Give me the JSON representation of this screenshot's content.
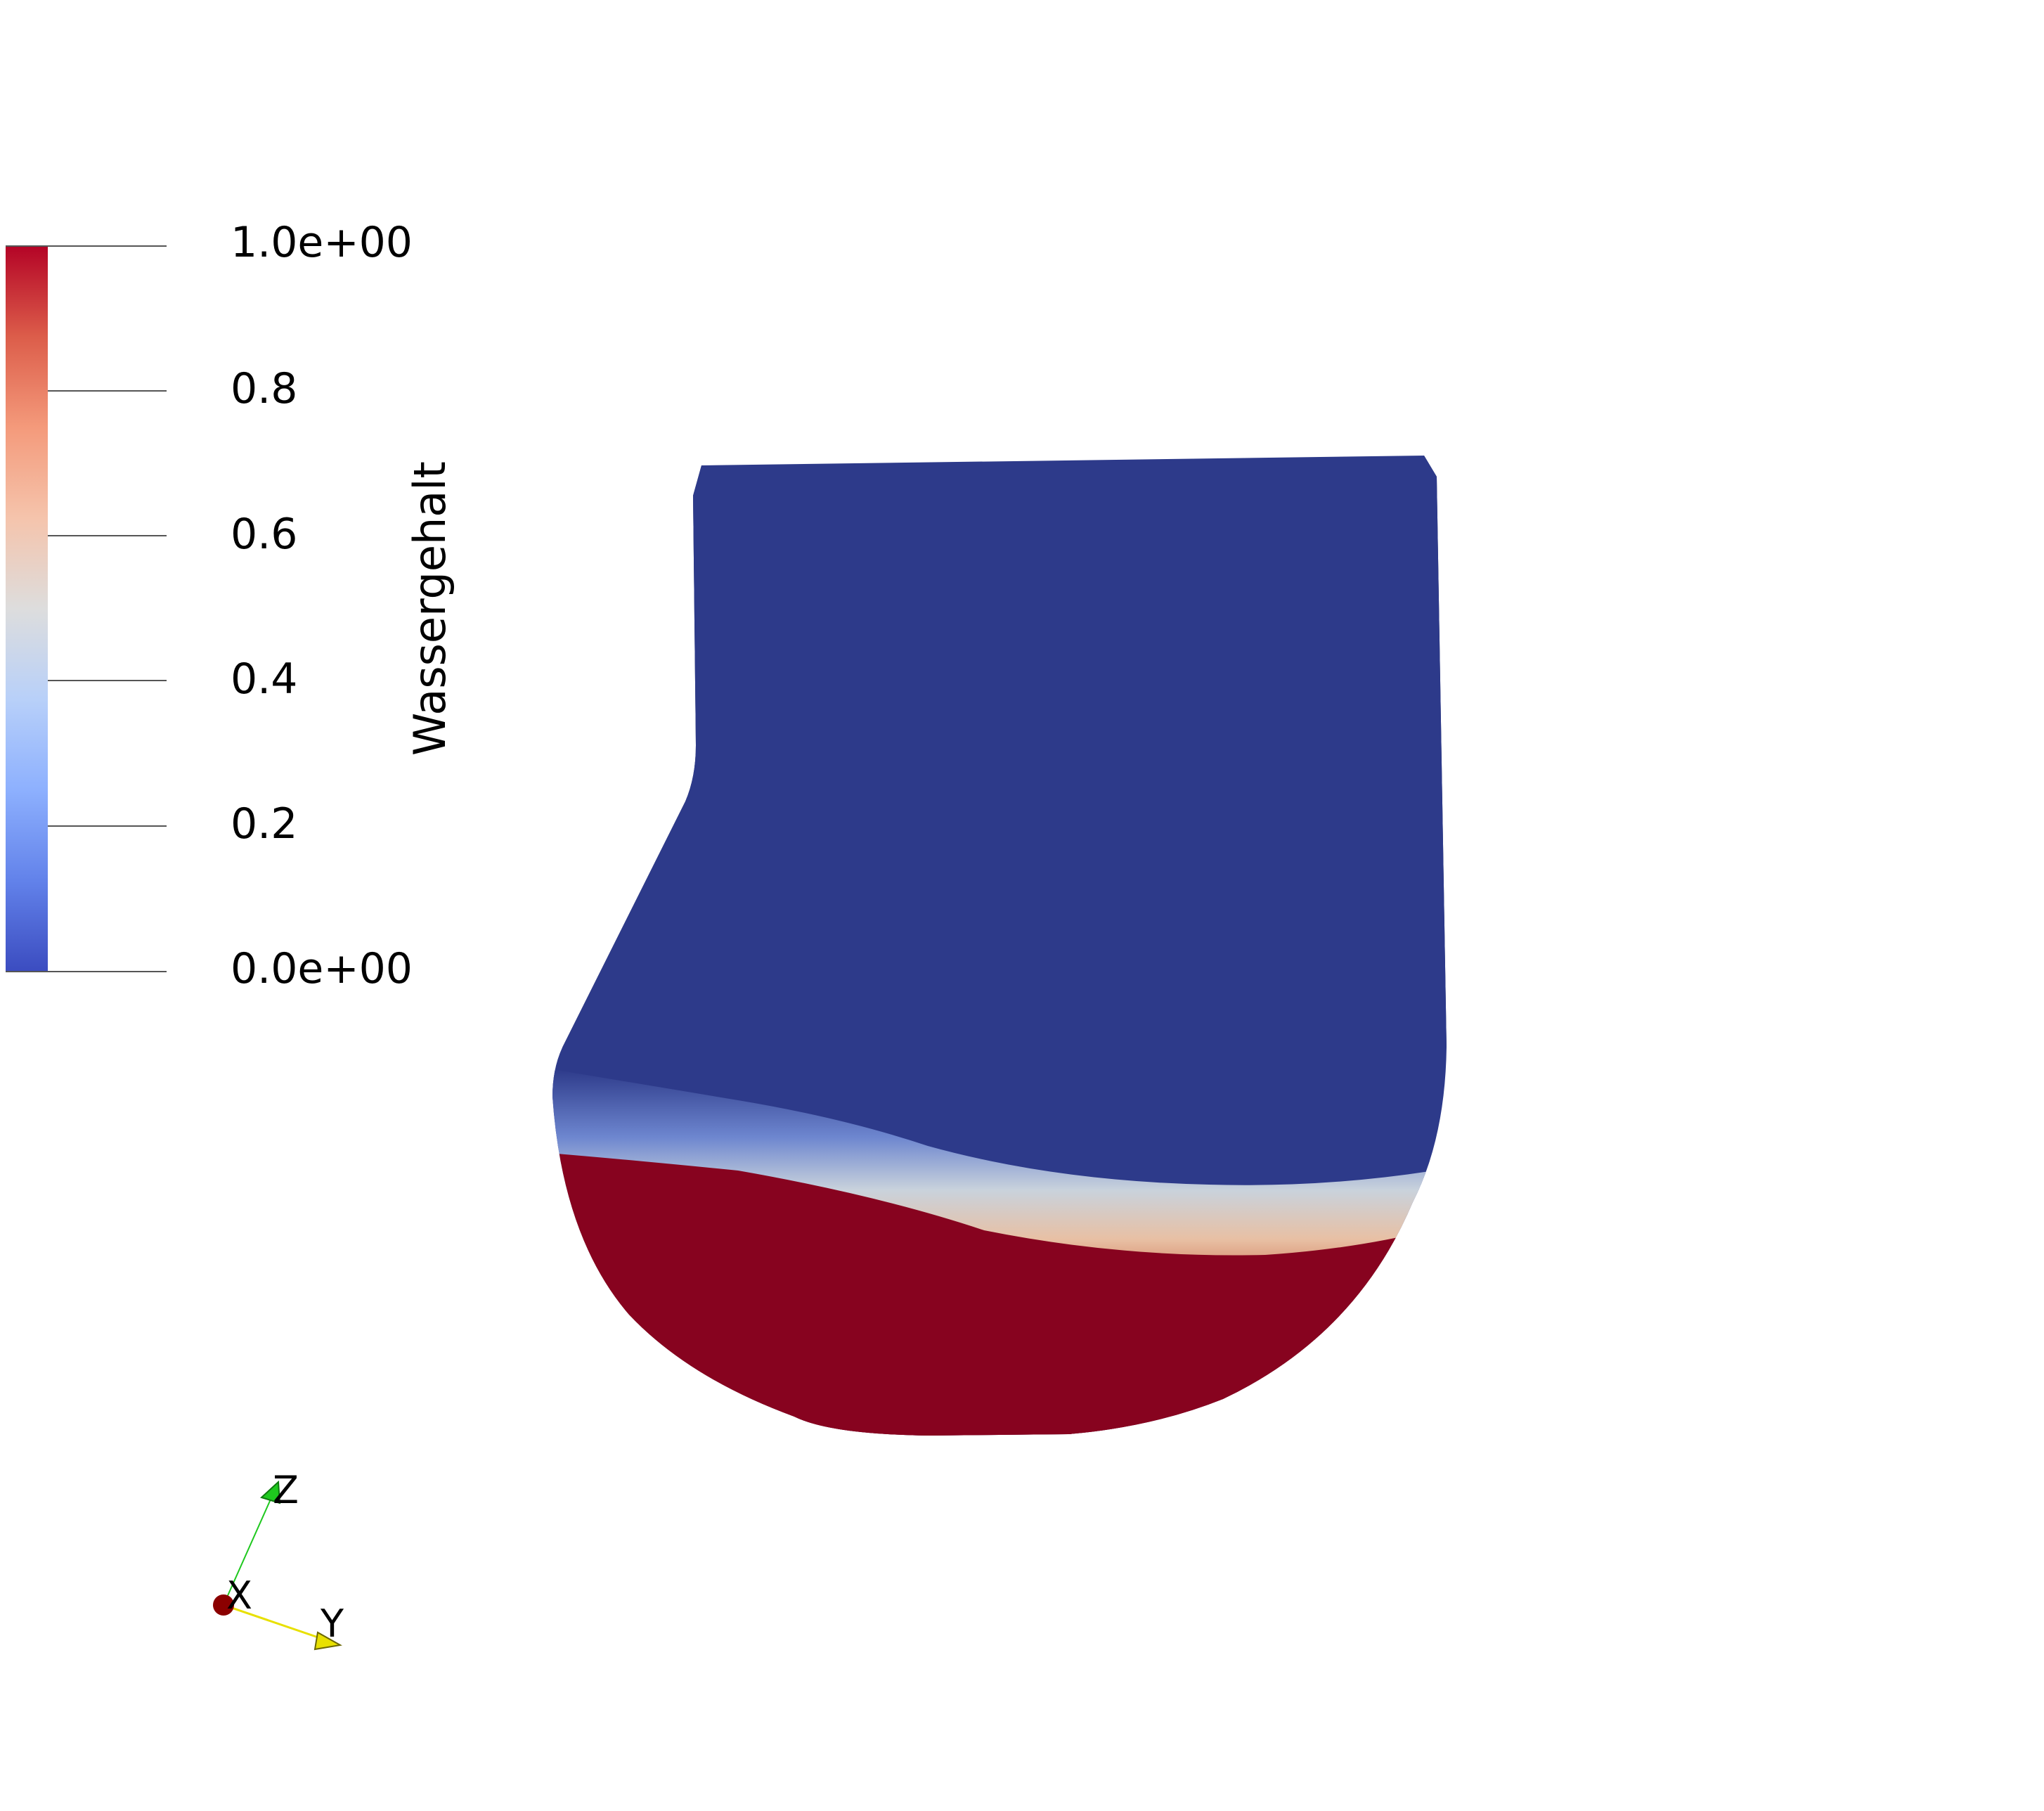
{
  "colorbar": {
    "title": "Wassergehalt",
    "ticks": [
      "1.0e+00",
      "0.8",
      "0.6",
      "0.4",
      "0.2",
      "0.0e+00"
    ],
    "range": [
      0,
      1
    ],
    "colormap": "cool-to-warm",
    "colors": {
      "low": "#3b4cc0",
      "mid": "#dddddd",
      "high": "#b40426"
    }
  },
  "field": {
    "dry_color": "#2d3a8a",
    "wet_color": "#87031f",
    "edge_color": "#1a2150"
  },
  "axes": {
    "x_label": "X",
    "y_label": "Y",
    "z_label": "Z",
    "x_color": "#8b0000",
    "y_color": "#e8e000",
    "z_color": "#1ec81e"
  }
}
